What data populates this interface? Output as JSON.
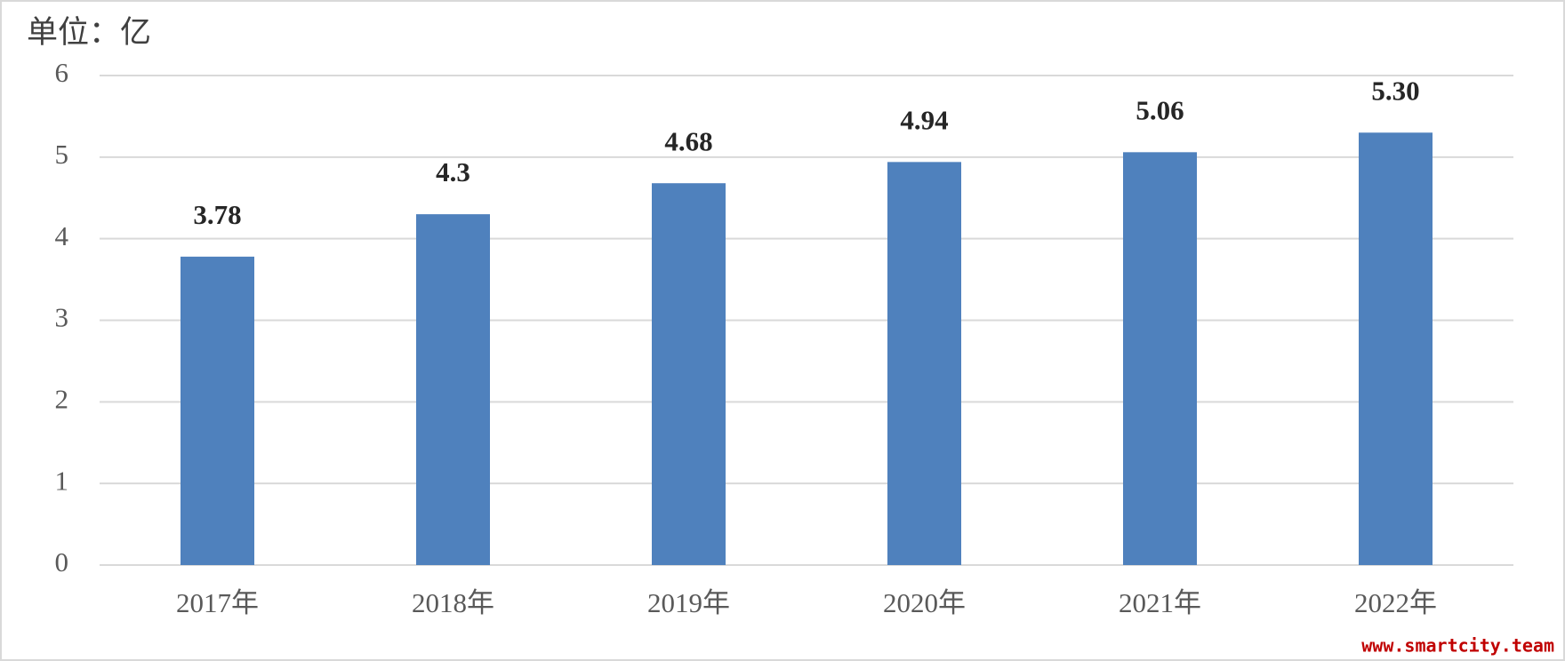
{
  "chart_data": {
    "type": "bar",
    "title": "单位：亿",
    "categories": [
      "2017年",
      "2018年",
      "2019年",
      "2020年",
      "2021年",
      "2022年"
    ],
    "values": [
      3.78,
      4.3,
      4.68,
      4.94,
      5.06,
      5.3
    ],
    "value_labels": [
      "3.78",
      "4.3",
      "4.68",
      "4.94",
      "5.06",
      "5.30"
    ],
    "color": "#4f81bd",
    "ylim": [
      0,
      6
    ],
    "yticks": [
      0,
      1,
      2,
      3,
      4,
      5,
      6
    ],
    "grid": true,
    "watermark": "www.smartcity.team"
  }
}
